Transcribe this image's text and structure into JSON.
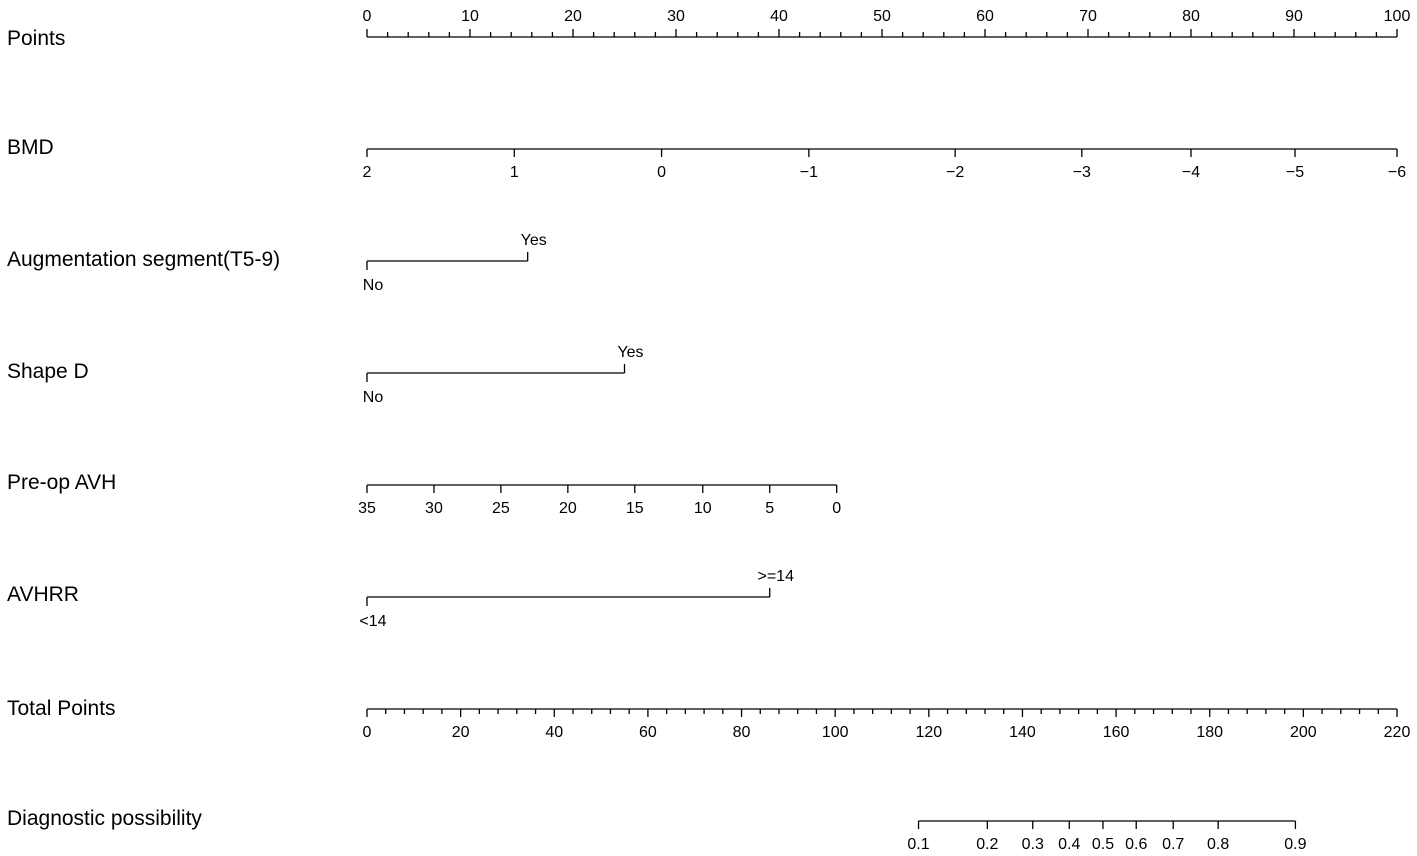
{
  "chart_data": {
    "type": "nomogram",
    "title": "",
    "rows": [
      {
        "label": "Points",
        "scale": "points",
        "tick_position": "above",
        "major_ticks": [
          0,
          10,
          20,
          30,
          40,
          50,
          60,
          70,
          80,
          90,
          100
        ],
        "major_labels": [
          "0",
          "10",
          "20",
          "30",
          "40",
          "50",
          "60",
          "70",
          "80",
          "90",
          "100"
        ],
        "minor_step": 2,
        "range": [
          0,
          100
        ]
      },
      {
        "label": "BMD",
        "scale": "variable",
        "tick_position": "below",
        "values": [
          2,
          1,
          0,
          -1,
          -2,
          -3,
          -4,
          -5,
          -6
        ],
        "value_labels": [
          "2",
          "1",
          "0",
          "−1",
          "−2",
          "−3",
          "−4",
          "−5",
          "−6"
        ],
        "points": [
          0,
          14.3,
          28.6,
          42.9,
          57.1,
          69.4,
          80.0,
          90.1,
          100
        ]
      },
      {
        "label": "Augmentation segment(T5-9)",
        "scale": "categorical",
        "categories": [
          {
            "label": "No",
            "points": 0,
            "label_position": "below"
          },
          {
            "label": "Yes",
            "points": 15.6,
            "label_position": "above"
          }
        ]
      },
      {
        "label": "Shape D",
        "scale": "categorical",
        "categories": [
          {
            "label": "No",
            "points": 0,
            "label_position": "below"
          },
          {
            "label": "Yes",
            "points": 25.0,
            "label_position": "above"
          }
        ]
      },
      {
        "label": "Pre-op AVH",
        "scale": "variable",
        "tick_position": "below",
        "values": [
          35,
          30,
          25,
          20,
          15,
          10,
          5,
          0
        ],
        "value_labels": [
          "35",
          "30",
          "25",
          "20",
          "15",
          "10",
          "5",
          "0"
        ],
        "points": [
          0,
          6.5,
          13.0,
          19.5,
          26.0,
          32.6,
          39.1,
          45.6
        ]
      },
      {
        "label": "AVHRR",
        "scale": "categorical",
        "categories": [
          {
            "label": "<14",
            "points": 0,
            "label_position": "below"
          },
          {
            "label": ">=14",
            "points": 39.1,
            "label_position": "above"
          }
        ]
      },
      {
        "label": "Total Points",
        "scale": "total",
        "tick_position": "below",
        "major_ticks": [
          0,
          20,
          40,
          60,
          80,
          100,
          120,
          140,
          160,
          180,
          200,
          220
        ],
        "major_labels": [
          "0",
          "20",
          "40",
          "60",
          "80",
          "100",
          "120",
          "140",
          "160",
          "180",
          "200",
          "220"
        ],
        "minor_step": 4,
        "range": [
          0,
          220
        ]
      },
      {
        "label": "Diagnostic possibility",
        "scale": "probability",
        "tick_position": "below",
        "values": [
          0.1,
          0.2,
          0.3,
          0.4,
          0.5,
          0.6,
          0.7,
          0.8,
          0.9
        ],
        "value_labels": [
          "0.1",
          "0.2",
          "0.3",
          "0.4",
          "0.5",
          "0.6",
          "0.7",
          "0.8",
          "0.9"
        ],
        "total_points": [
          117.8,
          132.5,
          142.2,
          150.0,
          157.2,
          164.3,
          172.2,
          181.8,
          198.3
        ]
      }
    ]
  }
}
